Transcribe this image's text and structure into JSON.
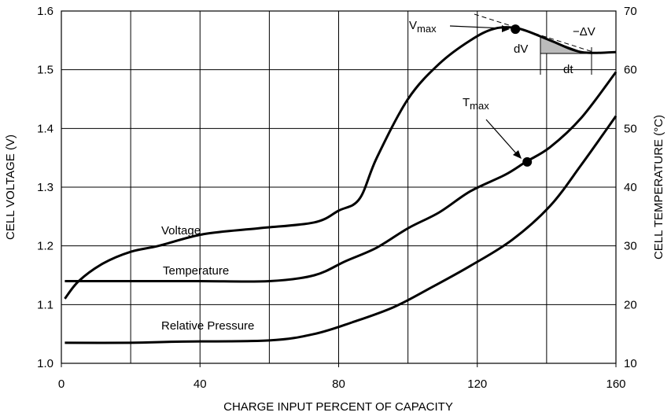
{
  "chart_data": {
    "type": "line",
    "xlabel": "CHARGE INPUT PERCENT OF CAPACITY",
    "ylabel": "CELL VOLTAGE (V)",
    "y2label": "CELL TEMPERATURE (°C)",
    "xlim": [
      0,
      160
    ],
    "xticks": [
      0,
      40,
      80,
      120,
      160
    ],
    "xgrid": [
      20,
      40,
      60,
      80,
      100,
      120,
      140
    ],
    "ylim": [
      1.0,
      1.6
    ],
    "yticks": [
      {
        "value": 1.0,
        "label": "1.0"
      },
      1.1,
      1.2,
      1.3,
      1.4,
      1.5,
      1.6
    ],
    "y2lim": [
      10,
      70
    ],
    "y2ticks": [
      10,
      20,
      30,
      40,
      50,
      60,
      70
    ],
    "grid": true,
    "series": [
      {
        "name": "Voltage",
        "color": "#000000",
        "axis": "y",
        "x": [
          1,
          5,
          12,
          20,
          28,
          41,
          57,
          73,
          80,
          86,
          91,
          100,
          109,
          118,
          125,
          132,
          141,
          150,
          160
        ],
        "values": [
          1.11,
          1.14,
          1.17,
          1.19,
          1.2,
          1.22,
          1.23,
          1.24,
          1.26,
          1.28,
          1.35,
          1.45,
          1.51,
          1.55,
          1.57,
          1.57,
          1.55,
          1.53,
          1.53
        ]
      },
      {
        "name": "Temperature",
        "color": "#000000",
        "axis": "y2",
        "x": [
          1,
          20,
          40,
          60,
          73,
          82,
          91,
          100,
          109,
          118,
          128,
          134,
          141,
          150,
          160
        ],
        "values": [
          24,
          24,
          24,
          24,
          25,
          27.4,
          29.7,
          33,
          35.7,
          39.3,
          42.1,
          44.3,
          46.8,
          51.8,
          59.6
        ]
      },
      {
        "name": "Relative Pressure",
        "color": "#000000",
        "axis": "y",
        "x": [
          1,
          20,
          35,
          60,
          73,
          84,
          96,
          107,
          118,
          130,
          141,
          150,
          160
        ],
        "values": [
          1.035,
          1.035,
          1.037,
          1.039,
          1.05,
          1.07,
          1.096,
          1.13,
          1.166,
          1.21,
          1.268,
          1.338,
          1.421
        ]
      }
    ],
    "markers": [
      {
        "x": 131,
        "value": 1.569,
        "axis": "y"
      },
      {
        "x": 134.4,
        "value": 44.3,
        "axis": "y2"
      }
    ],
    "annotations": {
      "vmax": {
        "text": "V",
        "sub": "max"
      },
      "tmax": {
        "text": "T",
        "sub": "max"
      },
      "dv": "dV",
      "dt": "dt",
      "delta_v": "−ΔV"
    }
  }
}
